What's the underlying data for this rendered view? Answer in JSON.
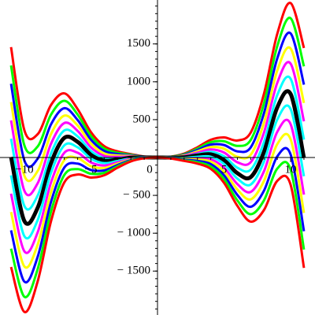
{
  "chart_data": {
    "type": "line",
    "x": [
      -11,
      -10,
      -9,
      -8,
      -7,
      -6,
      -5,
      -4,
      -3,
      -2,
      -1,
      0,
      1,
      2,
      3,
      4,
      5,
      6,
      7,
      8,
      9,
      10,
      11
    ],
    "series": [
      {
        "color": "#ff0000",
        "line_width": 3,
        "values": [
          1458,
          361,
          308,
          693,
          847,
          639,
          335,
          150,
          81,
          45,
          13,
          0,
          11,
          51,
          135,
          234,
          265,
          225,
          329,
          843,
          1636,
          2039,
          1446
        ]
      },
      {
        "color": "#00ff00",
        "line_width": 3,
        "values": [
          1216,
          161,
          146,
          565,
          749,
          567,
          285,
          118,
          63,
          37,
          11,
          0,
          9,
          43,
          117,
          202,
          215,
          153,
          231,
          715,
          1474,
          1839,
          1204
        ]
      },
      {
        "color": "#0000ff",
        "line_width": 3,
        "values": [
          974,
          -39,
          -16,
          437,
          651,
          495,
          235,
          86,
          45,
          29,
          9,
          0,
          7,
          35,
          99,
          170,
          165,
          81,
          133,
          587,
          1312,
          1639,
          962
        ]
      },
      {
        "color": "#ffff00",
        "line_width": 3,
        "values": [
          732,
          -239,
          -178,
          309,
          553,
          423,
          185,
          54,
          27,
          21,
          7,
          0,
          5,
          27,
          81,
          138,
          115,
          9,
          35,
          459,
          1150,
          1439,
          720
        ]
      },
      {
        "color": "#ff00ff",
        "line_width": 3,
        "values": [
          490,
          -439,
          -340,
          181,
          455,
          351,
          135,
          22,
          9,
          13,
          5,
          0,
          3,
          19,
          63,
          106,
          65,
          -63,
          -63,
          331,
          988,
          1239,
          478
        ]
      },
      {
        "color": "#00ffff",
        "line_width": 3,
        "values": [
          248,
          -639,
          -502,
          53,
          357,
          279,
          85,
          -10,
          -9,
          5,
          3,
          0,
          1,
          11,
          45,
          74,
          15,
          -135,
          -161,
          203,
          826,
          1039,
          236
        ]
      },
      {
        "color": "#000000",
        "line_width": 5,
        "values": [
          6,
          -839,
          -664,
          -75,
          259,
          207,
          35,
          -42,
          -27,
          -3,
          1,
          0,
          -1,
          3,
          27,
          42,
          -35,
          -207,
          -259,
          75,
          664,
          839,
          -6
        ]
      },
      {
        "color": "#00ffff",
        "line_width": 3,
        "values": [
          -236,
          -1039,
          -826,
          -203,
          161,
          135,
          -15,
          -74,
          -45,
          -11,
          -1,
          0,
          -3,
          -5,
          9,
          10,
          -85,
          -279,
          -357,
          -53,
          502,
          639,
          -248
        ]
      },
      {
        "color": "#ff00ff",
        "line_width": 3,
        "values": [
          -478,
          -1239,
          -988,
          -331,
          63,
          63,
          -65,
          -106,
          -63,
          -19,
          -3,
          0,
          -5,
          -13,
          -9,
          -22,
          -135,
          -351,
          -455,
          -181,
          340,
          439,
          -490
        ]
      },
      {
        "color": "#ffff00",
        "line_width": 3,
        "values": [
          -720,
          -1439,
          -1150,
          -459,
          -35,
          -9,
          -115,
          -138,
          -81,
          -27,
          -5,
          0,
          -7,
          -21,
          -27,
          -54,
          -185,
          -423,
          -553,
          -309,
          178,
          239,
          -732
        ]
      },
      {
        "color": "#0000ff",
        "line_width": 3,
        "values": [
          -962,
          -1639,
          -1312,
          -587,
          -133,
          -81,
          -165,
          -170,
          -99,
          -35,
          -7,
          0,
          -9,
          -29,
          -45,
          -86,
          -235,
          -495,
          -651,
          -437,
          16,
          39,
          -974
        ]
      },
      {
        "color": "#00ff00",
        "line_width": 3,
        "values": [
          -1204,
          -1839,
          -1474,
          -715,
          -231,
          -153,
          -215,
          -202,
          -117,
          -43,
          -9,
          0,
          -11,
          -37,
          -63,
          -118,
          -285,
          -567,
          -749,
          -565,
          -146,
          -161,
          -1216
        ]
      },
      {
        "color": "#ff0000",
        "line_width": 3,
        "values": [
          -1446,
          -2039,
          -1636,
          -843,
          -329,
          -225,
          -265,
          -234,
          -135,
          -51,
          -11,
          0,
          -13,
          -45,
          -81,
          -150,
          -335,
          -639,
          -847,
          -693,
          -308,
          -361,
          -1458
        ]
      }
    ],
    "xlim": [
      -11.83,
      11.83
    ],
    "ylim": [
      -2080,
      2080
    ],
    "xticks": [
      {
        "value": -10,
        "label": "−10"
      },
      {
        "value": -5,
        "label": "−5"
      },
      0,
      5,
      10
    ],
    "yticks": [
      {
        "value": -1500,
        "label": "− 1500"
      },
      {
        "value": -1000,
        "label": "− 1000"
      },
      {
        "value": -500,
        "label": "− 500"
      },
      500,
      1000,
      1500
    ],
    "grid": false
  }
}
